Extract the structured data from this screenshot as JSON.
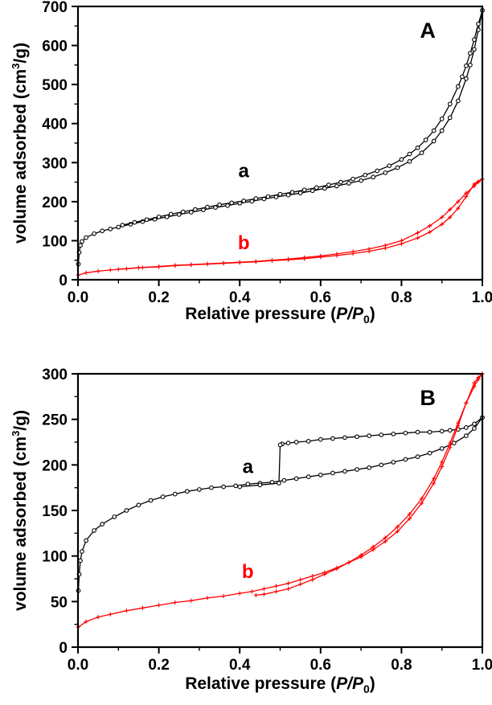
{
  "figure": {
    "background": "#ffffff",
    "frame_color": "#000000"
  },
  "chart_data": [
    {
      "type": "line",
      "panel_label": "A",
      "xlabel": {
        "pre": "Relative pressure (",
        "var": "P/P",
        "sub": "0",
        "post": ")"
      },
      "ylabel": {
        "pre": "volume adsorbed (cm",
        "sup": "3",
        "post": "/g)"
      },
      "xlim": [
        0.0,
        1.0
      ],
      "ylim": [
        0,
        700
      ],
      "grid": false,
      "xticks": {
        "values": [
          0.0,
          0.2,
          0.4,
          0.6,
          0.8,
          1.0
        ],
        "labels": [
          "0.0",
          "0.2",
          "0.4",
          "0.6",
          "0.8",
          "1.0"
        ],
        "minor_step": 0.1
      },
      "yticks": {
        "values": [
          0,
          100,
          200,
          300,
          400,
          500,
          600,
          700
        ],
        "labels": [
          "0",
          "100",
          "200",
          "300",
          "400",
          "500",
          "600",
          "700"
        ],
        "minor_step": 50
      },
      "series": [
        {
          "name": "a",
          "color": "#000000",
          "marker": "circle",
          "label": {
            "text": "a",
            "x": 0.41,
            "y": 262
          },
          "branches": [
            {
              "x": [
                0.001,
                0.003,
                0.006,
                0.01,
                0.02,
                0.04,
                0.06,
                0.08,
                0.1,
                0.13,
                0.16,
                0.19,
                0.22,
                0.25,
                0.28,
                0.31,
                0.34,
                0.37,
                0.4,
                0.43,
                0.46,
                0.49,
                0.52,
                0.55,
                0.58,
                0.61,
                0.64,
                0.67,
                0.7,
                0.73,
                0.76,
                0.79,
                0.82,
                0.85,
                0.88,
                0.9,
                0.92,
                0.94,
                0.96,
                0.97,
                0.98,
                0.99,
                1.0
              ],
              "y": [
                40,
                70,
                88,
                98,
                108,
                118,
                125,
                130,
                135,
                142,
                149,
                155,
                161,
                167,
                173,
                179,
                185,
                190,
                196,
                201,
                207,
                212,
                217,
                222,
                228,
                234,
                240,
                247,
                254,
                263,
                274,
                287,
                303,
                325,
                355,
                382,
                415,
                458,
                515,
                550,
                590,
                640,
                690
              ]
            },
            {
              "x": [
                1.0,
                0.99,
                0.98,
                0.97,
                0.96,
                0.95,
                0.94,
                0.92,
                0.9,
                0.88,
                0.86,
                0.84,
                0.82,
                0.8,
                0.77,
                0.74,
                0.71,
                0.68,
                0.65,
                0.62,
                0.59,
                0.56,
                0.53,
                0.5,
                0.47,
                0.44,
                0.41,
                0.38,
                0.35,
                0.32,
                0.29,
                0.26,
                0.23,
                0.2,
                0.17,
                0.14,
                0.11
              ],
              "y": [
                690,
                655,
                615,
                580,
                548,
                520,
                495,
                450,
                412,
                382,
                358,
                338,
                322,
                308,
                292,
                279,
                268,
                258,
                250,
                243,
                236,
                230,
                224,
                219,
                213,
                208,
                202,
                197,
                192,
                186,
                180,
                174,
                168,
                161,
                154,
                147,
                140
              ]
            }
          ]
        },
        {
          "name": "b",
          "color": "#ff0000",
          "marker": "plus",
          "label": {
            "text": "b",
            "x": 0.41,
            "y": 78
          },
          "branches": [
            {
              "x": [
                0.001,
                0.02,
                0.05,
                0.08,
                0.12,
                0.16,
                0.2,
                0.24,
                0.28,
                0.32,
                0.36,
                0.4,
                0.44,
                0.48,
                0.52,
                0.56,
                0.6,
                0.64,
                0.68,
                0.72,
                0.76,
                0.8,
                0.84,
                0.87,
                0.9,
                0.92,
                0.94,
                0.96,
                0.98,
                0.99,
                1.0
              ],
              "y": [
                12,
                18,
                22,
                25,
                28,
                31,
                33,
                36,
                38,
                40,
                42,
                44,
                46,
                49,
                51,
                54,
                58,
                62,
                67,
                73,
                81,
                92,
                107,
                122,
                142,
                160,
                183,
                213,
                245,
                252,
                258
              ]
            },
            {
              "x": [
                1.0,
                0.99,
                0.98,
                0.96,
                0.94,
                0.92,
                0.9,
                0.87,
                0.84,
                0.8,
                0.76,
                0.72,
                0.68,
                0.64,
                0.6,
                0.56,
                0.52,
                0.48,
                0.44,
                0.4,
                0.36,
                0.32,
                0.28,
                0.24,
                0.2,
                0.15,
                0.1
              ],
              "y": [
                258,
                250,
                240,
                222,
                200,
                180,
                160,
                138,
                120,
                100,
                88,
                79,
                72,
                66,
                61,
                57,
                53,
                50,
                47,
                45,
                43,
                41,
                39,
                37,
                34,
                31,
                27
              ]
            }
          ]
        }
      ]
    },
    {
      "type": "line",
      "panel_label": "B",
      "xlabel": {
        "pre": "Relative pressure (",
        "var": "P/P",
        "sub": "0",
        "post": ")"
      },
      "ylabel": {
        "pre": "volume adsorbed (cm",
        "sup": "3",
        "post": "/g)"
      },
      "xlim": [
        0.0,
        1.0
      ],
      "ylim": [
        0,
        300
      ],
      "grid": false,
      "xticks": {
        "values": [
          0.0,
          0.2,
          0.4,
          0.6,
          0.8,
          1.0
        ],
        "labels": [
          "0.0",
          "0.2",
          "0.4",
          "0.6",
          "0.8",
          "1.0"
        ],
        "minor_step": 0.1
      },
      "yticks": {
        "values": [
          0,
          50,
          100,
          150,
          200,
          250,
          300
        ],
        "labels": [
          "0",
          "50",
          "100",
          "150",
          "200",
          "250",
          "300"
        ],
        "minor_step": 25
      },
      "series": [
        {
          "name": "a",
          "color": "#000000",
          "marker": "circle",
          "label": {
            "text": "a",
            "x": 0.42,
            "y": 191
          },
          "branches": [
            {
              "x": [
                0.001,
                0.003,
                0.006,
                0.01,
                0.02,
                0.04,
                0.06,
                0.09,
                0.12,
                0.15,
                0.18,
                0.21,
                0.24,
                0.27,
                0.3,
                0.33,
                0.36,
                0.39,
                0.42,
                0.45,
                0.48,
                0.51,
                0.54,
                0.57,
                0.6,
                0.63,
                0.66,
                0.69,
                0.72,
                0.75,
                0.78,
                0.81,
                0.84,
                0.87,
                0.9,
                0.93,
                0.96,
                0.98,
                1.0
              ],
              "y": [
                62,
                80,
                95,
                105,
                117,
                128,
                135,
                143,
                150,
                156,
                161,
                165,
                168,
                171,
                173,
                175,
                176,
                177,
                179,
                180,
                181,
                183,
                185,
                187,
                189,
                191,
                193,
                195,
                197,
                200,
                203,
                206,
                209,
                213,
                218,
                224,
                232,
                240,
                252
              ]
            },
            {
              "x": [
                1.0,
                0.98,
                0.96,
                0.94,
                0.92,
                0.9,
                0.87,
                0.84,
                0.81,
                0.78,
                0.75,
                0.72,
                0.69,
                0.66,
                0.63,
                0.6,
                0.57,
                0.54,
                0.52,
                0.505,
                0.5,
                0.497,
                0.45,
                0.4
              ],
              "y": [
                252,
                245,
                241,
                239,
                238,
                237,
                236,
                236,
                235,
                234,
                233,
                232,
                231,
                230,
                229,
                228,
                226,
                225,
                224,
                223,
                222,
                180,
                178,
                176
              ]
            }
          ]
        },
        {
          "name": "b",
          "color": "#ff0000",
          "marker": "plus",
          "label": {
            "text": "b",
            "x": 0.42,
            "y": 76
          },
          "branches": [
            {
              "x": [
                0.001,
                0.02,
                0.05,
                0.08,
                0.12,
                0.16,
                0.2,
                0.24,
                0.28,
                0.32,
                0.36,
                0.4,
                0.43,
                0.46,
                0.49,
                0.52,
                0.55,
                0.58,
                0.61,
                0.64,
                0.67,
                0.7,
                0.73,
                0.76,
                0.79,
                0.82,
                0.85,
                0.88,
                0.9,
                0.92,
                0.94,
                0.96,
                0.98,
                0.99,
                1.0
              ],
              "y": [
                22,
                28,
                33,
                36,
                40,
                43,
                46,
                49,
                51,
                54,
                56,
                59,
                61,
                64,
                67,
                70,
                74,
                78,
                82,
                87,
                93,
                99,
                107,
                116,
                127,
                141,
                158,
                180,
                198,
                219,
                243,
                268,
                290,
                296,
                300
              ]
            },
            {
              "x": [
                1.0,
                0.99,
                0.98,
                0.96,
                0.94,
                0.92,
                0.9,
                0.88,
                0.85,
                0.82,
                0.79,
                0.76,
                0.73,
                0.7,
                0.67,
                0.64,
                0.61,
                0.58,
                0.55,
                0.52,
                0.49,
                0.46,
                0.44
              ],
              "y": [
                300,
                294,
                286,
                268,
                246,
                224,
                203,
                185,
                163,
                146,
                132,
                120,
                110,
                101,
                93,
                86,
                80,
                74,
                69,
                64,
                61,
                58,
                57
              ]
            }
          ]
        }
      ]
    }
  ]
}
